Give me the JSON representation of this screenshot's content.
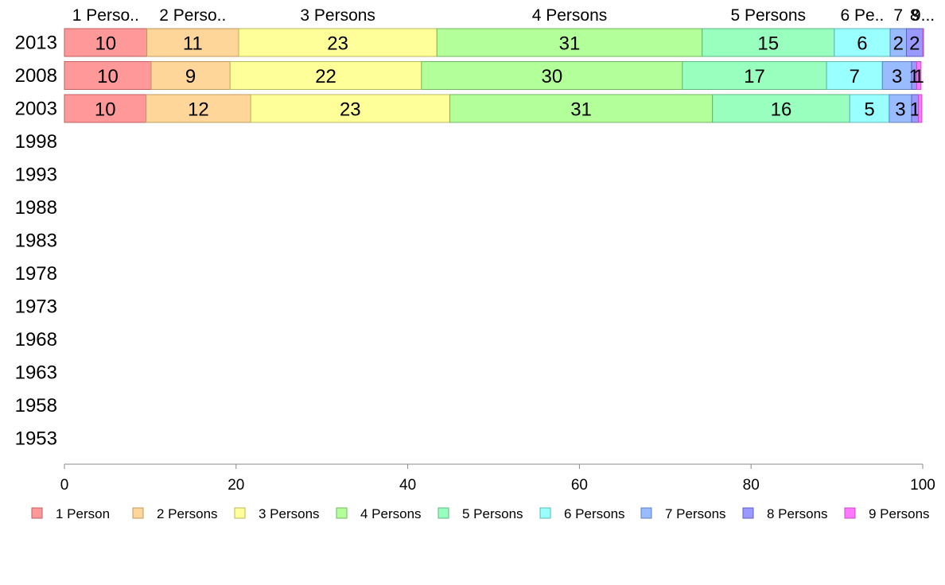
{
  "chart_data": {
    "type": "bar",
    "orientation": "horizontal",
    "stacked": true,
    "categories": [
      "2013",
      "2008",
      "2003",
      "1998",
      "1993",
      "1988",
      "1983",
      "1978",
      "1973",
      "1968",
      "1963",
      "1958",
      "1953"
    ],
    "series": [
      {
        "name": "1 Person",
        "color": "#ff9999",
        "stroke": "#c06060",
        "values": [
          9.6,
          10.1,
          9.5,
          null,
          null,
          null,
          null,
          null,
          null,
          null,
          null,
          null,
          null
        ],
        "data_labels": [
          "10",
          "10",
          "10"
        ]
      },
      {
        "name": "2 Persons",
        "color": "#ffd699",
        "stroke": "#c09a5e",
        "values": [
          10.7,
          9.2,
          12.2,
          null,
          null,
          null,
          null,
          null,
          null,
          null,
          null,
          null,
          null
        ],
        "data_labels": [
          "11",
          "9",
          "12"
        ]
      },
      {
        "name": "3 Persons",
        "color": "#ffff99",
        "stroke": "#b8b860",
        "values": [
          23.1,
          22.3,
          23.2,
          null,
          null,
          null,
          null,
          null,
          null,
          null,
          null,
          null,
          null
        ],
        "data_labels": [
          "23",
          "22",
          "23"
        ]
      },
      {
        "name": "4 Persons",
        "color": "#b3ff99",
        "stroke": "#70b860",
        "values": [
          30.9,
          30.4,
          30.6,
          null,
          null,
          null,
          null,
          null,
          null,
          null,
          null,
          null,
          null
        ],
        "data_labels": [
          "31",
          "30",
          "31"
        ]
      },
      {
        "name": "5 Persons",
        "color": "#99ffbf",
        "stroke": "#5eb880",
        "values": [
          15.4,
          16.8,
          16.0,
          null,
          null,
          null,
          null,
          null,
          null,
          null,
          null,
          null,
          null
        ],
        "data_labels": [
          "15",
          "17",
          "16"
        ]
      },
      {
        "name": "6 Persons",
        "color": "#99ffff",
        "stroke": "#5eb8b8",
        "values": [
          6.5,
          6.5,
          4.6,
          null,
          null,
          null,
          null,
          null,
          null,
          null,
          null,
          null,
          null
        ],
        "data_labels": [
          "6",
          "7",
          "5"
        ]
      },
      {
        "name": "7 Persons",
        "color": "#99bbff",
        "stroke": "#6080c0",
        "values": [
          1.9,
          3.4,
          2.6,
          null,
          null,
          null,
          null,
          null,
          null,
          null,
          null,
          null,
          null
        ],
        "data_labels": [
          "2",
          "3",
          "3"
        ]
      },
      {
        "name": "8 Persons",
        "color": "#9999ff",
        "stroke": "#6060c0",
        "values": [
          1.9,
          0.6,
          0.8,
          null,
          null,
          null,
          null,
          null,
          null,
          null,
          null,
          null,
          null
        ],
        "data_labels": [
          "2",
          "1",
          "1"
        ]
      },
      {
        "name": "9 Persons",
        "color": "#ff77ff",
        "stroke": "#c050c0",
        "values": [
          0.1,
          0.5,
          0.4,
          null,
          null,
          null,
          null,
          null,
          null,
          null,
          null,
          null,
          null
        ],
        "data_labels": [
          "",
          "1",
          ""
        ]
      }
    ],
    "top_labels": [
      "1 Perso..",
      "2 Perso..",
      "3 Persons",
      "4 Persons",
      "5 Persons",
      "6 Pe..",
      "7",
      "8",
      "9..."
    ],
    "xlim": [
      0,
      100
    ],
    "xticks": [
      "0",
      "20",
      "40",
      "60",
      "80",
      "100"
    ],
    "title": "",
    "xlabel": "",
    "ylabel": "",
    "grid": false,
    "legend_position": "bottom"
  }
}
